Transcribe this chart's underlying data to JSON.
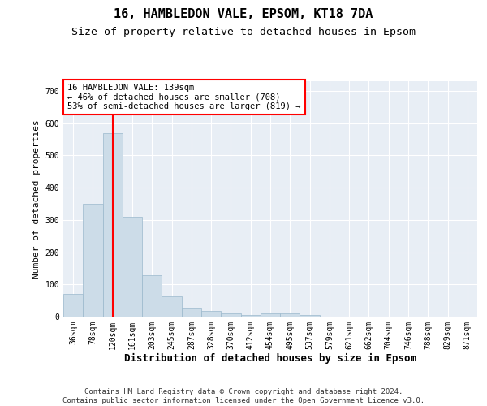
{
  "title": "16, HAMBLEDON VALE, EPSOM, KT18 7DA",
  "subtitle": "Size of property relative to detached houses in Epsom",
  "xlabel": "Distribution of detached houses by size in Epsom",
  "ylabel": "Number of detached properties",
  "footer_line1": "Contains HM Land Registry data © Crown copyright and database right 2024.",
  "footer_line2": "Contains public sector information licensed under the Open Government Licence v3.0.",
  "bar_labels": [
    "36sqm",
    "78sqm",
    "120sqm",
    "161sqm",
    "203sqm",
    "245sqm",
    "287sqm",
    "328sqm",
    "370sqm",
    "412sqm",
    "454sqm",
    "495sqm",
    "537sqm",
    "579sqm",
    "621sqm",
    "662sqm",
    "704sqm",
    "746sqm",
    "788sqm",
    "829sqm",
    "871sqm"
  ],
  "bar_values": [
    70,
    350,
    570,
    310,
    128,
    63,
    27,
    17,
    10,
    6,
    10,
    10,
    5,
    0,
    0,
    0,
    0,
    0,
    0,
    0,
    0
  ],
  "bar_color": "#ccdce8",
  "bar_edge_color": "#9ab8cc",
  "property_line_x": 2.0,
  "property_line_label": "16 HAMBLEDON VALE: 139sqm",
  "annotation_line1": "← 46% of detached houses are smaller (708)",
  "annotation_line2": "53% of semi-detached houses are larger (819) →",
  "annotation_box_color": "white",
  "annotation_box_edge_color": "red",
  "vline_color": "red",
  "ylim": [
    0,
    730
  ],
  "yticks": [
    0,
    100,
    200,
    300,
    400,
    500,
    600,
    700
  ],
  "background_color": "#e8eef5",
  "grid_color": "#ffffff",
  "title_fontsize": 11,
  "subtitle_fontsize": 9.5,
  "xlabel_fontsize": 9,
  "ylabel_fontsize": 8,
  "tick_fontsize": 7,
  "footer_fontsize": 6.5,
  "annotation_fontsize": 7.5
}
